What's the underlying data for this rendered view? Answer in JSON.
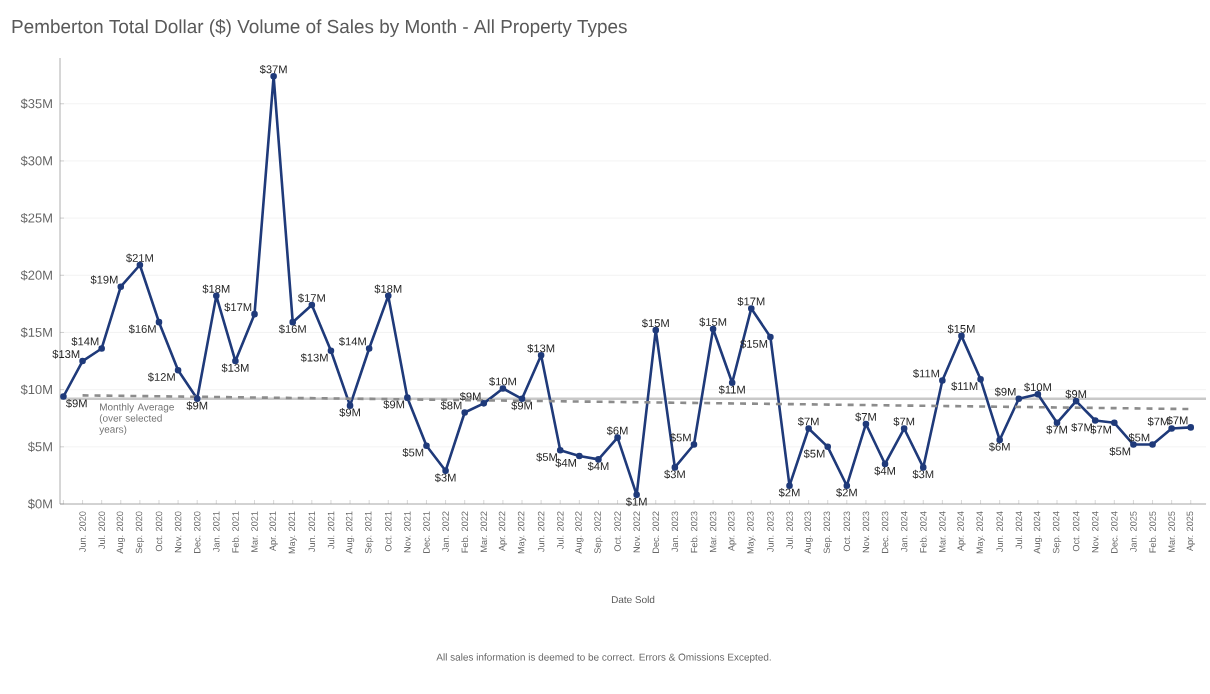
{
  "chart_data": {
    "type": "line",
    "title": "Pemberton Total Dollar ($) Volume of Sales by Month - All Property Types",
    "xlabel": "Date Sold",
    "categories": [
      null,
      "Jun. 2020",
      "Jul. 2020",
      "Aug. 2020",
      "Sep. 2020",
      "Oct. 2020",
      "Nov. 2020",
      "Dec. 2020",
      "Jan. 2021",
      "Feb. 2021",
      "Mar. 2021",
      "Apr. 2021",
      "May. 2021",
      "Jun. 2021",
      "Jul. 2021",
      "Aug. 2021",
      "Sep. 2021",
      "Oct. 2021",
      "Nov. 2021",
      "Dec. 2021",
      "Jan. 2022",
      "Feb. 2022",
      "Mar. 2022",
      "Apr. 2022",
      "May. 2022",
      "Jun. 2022",
      "Jul. 2022",
      "Aug. 2022",
      "Sep. 2022",
      "Oct. 2022",
      "Nov. 2022",
      "Dec. 2022",
      "Jan. 2023",
      "Feb. 2023",
      "Mar. 2023",
      "Apr. 2023",
      "May. 2023",
      "Jun. 2023",
      "Jul. 2023",
      "Aug. 2023",
      "Sep. 2023",
      "Oct. 2023",
      "Nov. 2023",
      "Dec. 2023",
      "Jan. 2024",
      "Feb. 2024",
      "Mar. 2024",
      "Apr. 2024",
      "May. 2024",
      "Jun. 2024",
      "Jul. 2024",
      "Aug. 2024",
      "Sep. 2024",
      "Oct. 2024",
      "Nov. 2024",
      "Dec. 2024",
      "Jan. 2025",
      "Feb. 2025",
      "Mar. 2025",
      "Apr. 2025"
    ],
    "series": [
      {
        "color": "#1f3a7a",
        "marker": "circle",
        "line_style": "solid",
        "values": [
          9.4,
          12.5,
          13.6,
          19.0,
          20.9,
          15.9,
          11.7,
          9.2,
          18.2,
          12.5,
          16.6,
          37.4,
          15.9,
          17.4,
          13.4,
          8.6,
          13.6,
          18.2,
          9.3,
          5.1,
          2.9,
          8.0,
          8.8,
          10.1,
          9.2,
          13.0,
          4.7,
          4.2,
          3.9,
          5.8,
          0.8,
          15.2,
          3.2,
          5.2,
          15.3,
          10.6,
          17.1,
          14.6,
          1.6,
          6.6,
          5.0,
          1.6,
          7.0,
          3.5,
          6.6,
          3.2,
          10.8,
          14.7,
          10.9,
          5.6,
          9.2,
          9.6,
          7.1,
          9.0,
          7.3,
          7.1,
          5.2,
          5.2,
          6.6,
          6.7
        ],
        "value_labels": [
          "$9M",
          "$13M",
          "$14M",
          "$19M",
          "$21M",
          "$16M",
          "$12M",
          "$9M",
          "$18M",
          "$13M",
          "$17M",
          "$37M",
          "$16M",
          "$17M",
          "$13M",
          "$9M",
          "$14M",
          "$18M",
          "$9M",
          "$5M",
          "$3M",
          "$8M",
          "$9M",
          "$10M",
          "$9M",
          "$13M",
          "$5M",
          "$4M",
          "$4M",
          "$6M",
          "$1M",
          "$15M",
          "$3M",
          "$5M",
          "$15M",
          "$11M",
          "$17M",
          "$15M",
          "$2M",
          "$7M",
          "$5M",
          "$2M",
          "$7M",
          "$4M",
          "$7M",
          "$3M",
          "$11M",
          "$15M",
          "$11M",
          "$6M",
          "$9M",
          "$10M",
          "$7M",
          "$9M",
          "$7M",
          "$7M",
          "$5M",
          "$5M",
          "$7M",
          "$7M"
        ]
      },
      {
        "type": "line",
        "color": "#8c8c8c",
        "line_style": "dashed",
        "marker": "none",
        "x": [
          "Jun. 2020",
          "Apr. 2025"
        ],
        "values": [
          9.5,
          8.3
        ]
      }
    ],
    "ylim": [
      0,
      39
    ],
    "yticks": [
      {
        "value": 0,
        "label": "$0M"
      },
      {
        "value": 5,
        "label": "$5M"
      },
      {
        "value": 10,
        "label": "$10M"
      },
      {
        "value": 15,
        "label": "$15M"
      },
      {
        "value": 20,
        "label": "$20M"
      },
      {
        "value": 25,
        "label": "$25M"
      },
      {
        "value": 30,
        "label": "$30M"
      },
      {
        "value": 35,
        "label": "$35M"
      }
    ],
    "grid": "y",
    "ref_lines": [
      {
        "axis": "y",
        "value": 9.2,
        "label": "Monthly Average (over selected years)",
        "color": "#c8c8c8",
        "line_style": "solid"
      }
    ],
    "annotations": [
      "All sales information is deemed to be correct. Errors & Omissions Excepted."
    ]
  }
}
